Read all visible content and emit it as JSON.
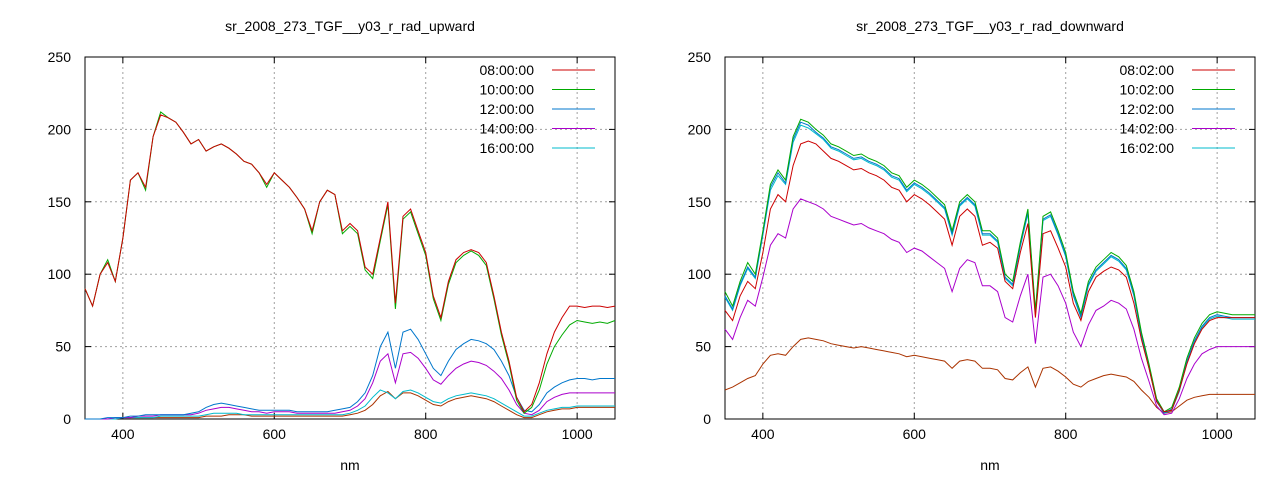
{
  "chart_data": [
    {
      "type": "line",
      "title": "sr_2008_273_TGF__y03_r_rad_upward",
      "xlabel": "nm",
      "ylabel": "",
      "xlim": [
        350,
        1050
      ],
      "ylim": [
        0,
        250
      ],
      "xticks": [
        400,
        600,
        800,
        1000
      ],
      "yticks": [
        0,
        50,
        100,
        150,
        200,
        250
      ],
      "grid": true,
      "legend_position": "top-right",
      "x": [
        350,
        360,
        370,
        380,
        390,
        400,
        410,
        420,
        430,
        440,
        450,
        460,
        470,
        480,
        490,
        500,
        510,
        520,
        530,
        540,
        550,
        560,
        570,
        580,
        590,
        600,
        610,
        620,
        630,
        640,
        650,
        660,
        670,
        680,
        690,
        700,
        710,
        720,
        730,
        740,
        750,
        760,
        770,
        780,
        790,
        800,
        810,
        820,
        830,
        840,
        850,
        860,
        870,
        880,
        890,
        900,
        910,
        920,
        930,
        940,
        950,
        960,
        970,
        980,
        990,
        1000,
        1010,
        1020,
        1030,
        1040,
        1050
      ],
      "series": [
        {
          "name": "08:00:00",
          "color": "#cc0000",
          "values": [
            90,
            78,
            100,
            108,
            95,
            125,
            165,
            170,
            160,
            195,
            210,
            208,
            205,
            198,
            190,
            193,
            185,
            188,
            190,
            187,
            183,
            178,
            176,
            170,
            162,
            170,
            165,
            160,
            153,
            145,
            130,
            150,
            158,
            155,
            130,
            135,
            130,
            105,
            100,
            125,
            150,
            80,
            140,
            145,
            130,
            115,
            85,
            70,
            95,
            110,
            115,
            117,
            115,
            108,
            85,
            60,
            40,
            15,
            5,
            10,
            25,
            45,
            60,
            70,
            78,
            78,
            77,
            78,
            78,
            77,
            78
          ]
        },
        {
          "name": "10:00:00",
          "color": "#00aa00",
          "values": [
            90,
            78,
            100,
            110,
            95,
            125,
            165,
            170,
            158,
            195,
            212,
            208,
            205,
            198,
            190,
            193,
            185,
            188,
            190,
            187,
            183,
            178,
            176,
            170,
            160,
            170,
            165,
            160,
            153,
            145,
            128,
            150,
            158,
            155,
            128,
            133,
            128,
            103,
            97,
            123,
            148,
            76,
            138,
            143,
            128,
            113,
            83,
            68,
            93,
            108,
            113,
            116,
            113,
            106,
            83,
            58,
            38,
            13,
            4,
            8,
            20,
            38,
            50,
            58,
            65,
            68,
            67,
            66,
            67,
            66,
            68
          ]
        },
        {
          "name": "12:00:00",
          "color": "#0077cc",
          "values": [
            0,
            0,
            0,
            1,
            1,
            1,
            2,
            2,
            3,
            3,
            3,
            3,
            3,
            3,
            4,
            5,
            8,
            10,
            11,
            10,
            9,
            8,
            7,
            6,
            6,
            6,
            6,
            6,
            5,
            5,
            5,
            5,
            5,
            6,
            7,
            8,
            12,
            18,
            30,
            50,
            60,
            35,
            60,
            62,
            55,
            45,
            35,
            30,
            40,
            48,
            52,
            55,
            54,
            52,
            48,
            40,
            30,
            15,
            6,
            5,
            10,
            18,
            22,
            25,
            27,
            28,
            28,
            27,
            28,
            28,
            28
          ]
        },
        {
          "name": "14:00:00",
          "color": "#aa00cc",
          "values": [
            0,
            0,
            0,
            0,
            1,
            1,
            1,
            2,
            2,
            2,
            3,
            3,
            3,
            3,
            3,
            4,
            6,
            7,
            8,
            8,
            7,
            6,
            5,
            5,
            4,
            5,
            5,
            5,
            4,
            4,
            4,
            4,
            4,
            4,
            5,
            6,
            9,
            14,
            25,
            40,
            45,
            25,
            45,
            46,
            42,
            35,
            27,
            24,
            30,
            35,
            38,
            40,
            39,
            37,
            33,
            28,
            20,
            10,
            4,
            3,
            6,
            12,
            15,
            17,
            18,
            18,
            18,
            18,
            18,
            18,
            18
          ]
        },
        {
          "name": "16:00:00",
          "color": "#00bbcc",
          "values": [
            0,
            0,
            0,
            0,
            0,
            1,
            1,
            1,
            1,
            1,
            2,
            2,
            2,
            2,
            2,
            2,
            3,
            4,
            4,
            4,
            4,
            3,
            3,
            3,
            3,
            3,
            3,
            3,
            3,
            3,
            3,
            3,
            3,
            3,
            3,
            4,
            6,
            9,
            15,
            20,
            18,
            14,
            19,
            20,
            18,
            15,
            12,
            11,
            14,
            16,
            17,
            18,
            17,
            16,
            14,
            11,
            8,
            5,
            2,
            2,
            4,
            6,
            7,
            8,
            8,
            9,
            9,
            9,
            9,
            9,
            9
          ]
        },
        {
          "name": "",
          "color": "#aa3300",
          "values": [
            0,
            0,
            0,
            0,
            0,
            1,
            1,
            1,
            1,
            1,
            1,
            1,
            1,
            1,
            1,
            1,
            2,
            2,
            2,
            3,
            3,
            3,
            2,
            2,
            2,
            2,
            2,
            2,
            2,
            2,
            2,
            2,
            2,
            2,
            2,
            3,
            4,
            6,
            10,
            16,
            19,
            14,
            18,
            18,
            16,
            13,
            10,
            9,
            12,
            14,
            15,
            16,
            15,
            14,
            12,
            9,
            6,
            3,
            1,
            1,
            3,
            5,
            6,
            7,
            7,
            8,
            8,
            8,
            8,
            8,
            8
          ]
        }
      ]
    },
    {
      "type": "line",
      "title": "sr_2008_273_TGF__y03_r_rad_downward",
      "xlabel": "nm",
      "ylabel": "",
      "xlim": [
        350,
        1050
      ],
      "ylim": [
        0,
        250
      ],
      "xticks": [
        400,
        600,
        800,
        1000
      ],
      "yticks": [
        0,
        50,
        100,
        150,
        200,
        250
      ],
      "grid": true,
      "legend_position": "top-right",
      "x": [
        350,
        360,
        370,
        380,
        390,
        400,
        410,
        420,
        430,
        440,
        450,
        460,
        470,
        480,
        490,
        500,
        510,
        520,
        530,
        540,
        550,
        560,
        570,
        580,
        590,
        600,
        610,
        620,
        630,
        640,
        650,
        660,
        670,
        680,
        690,
        700,
        710,
        720,
        730,
        740,
        750,
        760,
        770,
        780,
        790,
        800,
        810,
        820,
        830,
        840,
        850,
        860,
        870,
        880,
        890,
        900,
        910,
        920,
        930,
        940,
        950,
        960,
        970,
        980,
        990,
        1000,
        1010,
        1020,
        1030,
        1040,
        1050
      ],
      "series": [
        {
          "name": "08:02:00",
          "color": "#cc0000",
          "values": [
            75,
            68,
            85,
            95,
            90,
            115,
            145,
            155,
            150,
            175,
            190,
            192,
            190,
            185,
            180,
            178,
            175,
            172,
            173,
            170,
            168,
            165,
            160,
            158,
            150,
            155,
            152,
            148,
            143,
            138,
            120,
            140,
            145,
            140,
            120,
            122,
            118,
            95,
            90,
            115,
            135,
            70,
            128,
            130,
            118,
            105,
            80,
            68,
            88,
            98,
            102,
            105,
            103,
            98,
            80,
            55,
            35,
            12,
            5,
            6,
            20,
            38,
            52,
            62,
            68,
            70,
            70,
            70,
            70,
            70,
            70
          ]
        },
        {
          "name": "10:02:00",
          "color": "#00aa00",
          "values": [
            88,
            78,
            95,
            108,
            100,
            130,
            162,
            172,
            165,
            195,
            207,
            205,
            200,
            196,
            190,
            188,
            185,
            182,
            183,
            180,
            178,
            175,
            170,
            168,
            160,
            165,
            162,
            158,
            153,
            148,
            130,
            150,
            155,
            150,
            130,
            130,
            125,
            100,
            95,
            122,
            145,
            75,
            140,
            143,
            130,
            115,
            88,
            73,
            95,
            105,
            110,
            115,
            112,
            106,
            88,
            60,
            38,
            14,
            5,
            8,
            22,
            42,
            56,
            66,
            72,
            74,
            73,
            72,
            72,
            72,
            72
          ]
        },
        {
          "name": "12:02:00",
          "color": "#0077cc",
          "values": [
            85,
            76,
            93,
            105,
            98,
            128,
            160,
            170,
            163,
            193,
            205,
            203,
            198,
            194,
            188,
            186,
            183,
            180,
            181,
            178,
            176,
            173,
            168,
            166,
            158,
            163,
            160,
            156,
            151,
            146,
            128,
            148,
            153,
            148,
            128,
            128,
            123,
            98,
            93,
            120,
            143,
            73,
            138,
            141,
            128,
            113,
            86,
            71,
            93,
            103,
            108,
            113,
            110,
            104,
            86,
            58,
            36,
            13,
            4,
            7,
            20,
            40,
            54,
            64,
            70,
            72,
            71,
            70,
            70,
            70,
            70
          ]
        },
        {
          "name": "14:02:00",
          "color": "#aa00cc",
          "values": [
            62,
            55,
            70,
            82,
            78,
            98,
            120,
            128,
            125,
            145,
            152,
            150,
            148,
            145,
            140,
            138,
            136,
            134,
            135,
            132,
            130,
            128,
            124,
            122,
            115,
            118,
            116,
            112,
            108,
            104,
            88,
            104,
            110,
            108,
            92,
            92,
            88,
            70,
            67,
            85,
            100,
            52,
            98,
            100,
            92,
            80,
            60,
            50,
            65,
            75,
            78,
            82,
            80,
            76,
            62,
            42,
            26,
            9,
            3,
            4,
            14,
            28,
            38,
            45,
            48,
            50,
            50,
            50,
            50,
            50,
            50
          ]
        },
        {
          "name": "16:02:00",
          "color": "#00bbcc",
          "values": [
            84,
            75,
            92,
            104,
            97,
            127,
            158,
            168,
            162,
            191,
            203,
            201,
            197,
            193,
            187,
            185,
            182,
            179,
            180,
            177,
            175,
            172,
            167,
            165,
            157,
            162,
            159,
            155,
            150,
            145,
            127,
            147,
            152,
            147,
            127,
            127,
            122,
            97,
            92,
            119,
            142,
            72,
            137,
            140,
            127,
            112,
            85,
            70,
            92,
            102,
            107,
            112,
            109,
            103,
            85,
            57,
            35,
            12,
            4,
            6,
            19,
            39,
            53,
            63,
            69,
            71,
            70,
            69,
            69,
            69,
            69
          ]
        },
        {
          "name": "",
          "color": "#aa3300",
          "values": [
            20,
            22,
            25,
            28,
            30,
            38,
            44,
            45,
            44,
            50,
            55,
            56,
            55,
            54,
            52,
            51,
            50,
            49,
            50,
            49,
            48,
            47,
            46,
            45,
            43,
            44,
            43,
            42,
            41,
            40,
            35,
            40,
            41,
            40,
            35,
            35,
            34,
            28,
            27,
            32,
            36,
            22,
            35,
            36,
            33,
            29,
            24,
            22,
            26,
            28,
            30,
            31,
            30,
            29,
            26,
            20,
            15,
            8,
            4,
            5,
            9,
            13,
            15,
            16,
            17,
            17,
            17,
            17,
            17,
            17,
            17
          ]
        }
      ]
    }
  ]
}
